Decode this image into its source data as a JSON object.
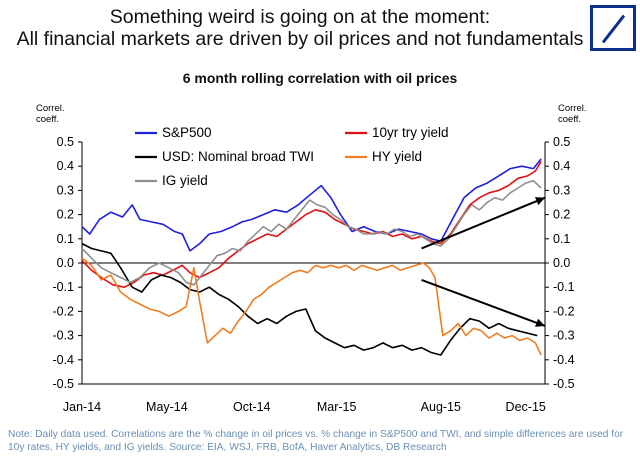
{
  "header": {
    "line1": "Something weird is going on at the moment:",
    "line2": "All financial markets are driven by oil prices and not fundamentals"
  },
  "logo": {
    "icon": "deutsche-bank-logo-icon",
    "color": "#0a2f8c"
  },
  "note": "Note: Daily data used. Correlations are the % change in oil prices vs. % change in S&P500 and TWI, and simple differences are used for 10y rates, HY yields, and IG yields. Source: EIA, WSJ, FRB, BofA, Haver Analytics, DB Research",
  "chart_data": {
    "type": "line",
    "title": "6 month rolling correlation with oil prices",
    "ylabel_left": "Correl. coeff.",
    "ylabel_right": "Correl. coeff.",
    "ylim": [
      -0.5,
      0.5
    ],
    "yticks": [
      0.5,
      0.4,
      0.3,
      0.2,
      0.1,
      0.0,
      -0.1,
      -0.2,
      -0.3,
      -0.4,
      -0.5
    ],
    "ytick_labels": [
      "0.5",
      "0.4",
      "0.3",
      "0.2",
      "0.1",
      "0.0",
      "-0.1",
      "-0.2",
      "-0.3",
      "-0.4",
      "-0.5"
    ],
    "xlim": [
      0,
      24
    ],
    "xticks": [
      {
        "t": 0,
        "label": "Jan-14"
      },
      {
        "t": 4.4,
        "label": "May-14"
      },
      {
        "t": 8.8,
        "label": "Oct-14"
      },
      {
        "t": 13.2,
        "label": "Mar-15"
      },
      {
        "t": 18.6,
        "label": "Aug-15"
      },
      {
        "t": 23,
        "label": "Dec-15"
      }
    ],
    "series": [
      {
        "name": "S&P500",
        "color": "#1f1fe0",
        "points": [
          [
            0,
            0.15
          ],
          [
            0.4,
            0.12
          ],
          [
            0.9,
            0.18
          ],
          [
            1.5,
            0.21
          ],
          [
            2.1,
            0.19
          ],
          [
            2.6,
            0.24
          ],
          [
            3.0,
            0.18
          ],
          [
            3.6,
            0.17
          ],
          [
            4.2,
            0.16
          ],
          [
            4.8,
            0.13
          ],
          [
            5.2,
            0.12
          ],
          [
            5.6,
            0.05
          ],
          [
            6.1,
            0.08
          ],
          [
            6.6,
            0.12
          ],
          [
            7.2,
            0.13
          ],
          [
            7.8,
            0.15
          ],
          [
            8.3,
            0.17
          ],
          [
            8.8,
            0.18
          ],
          [
            9.4,
            0.2
          ],
          [
            10.0,
            0.22
          ],
          [
            10.6,
            0.21
          ],
          [
            11.2,
            0.24
          ],
          [
            11.8,
            0.28
          ],
          [
            12.4,
            0.32
          ],
          [
            12.9,
            0.27
          ],
          [
            13.4,
            0.2
          ],
          [
            14.0,
            0.13
          ],
          [
            14.6,
            0.15
          ],
          [
            15.2,
            0.13
          ],
          [
            15.8,
            0.12
          ],
          [
            16.4,
            0.14
          ],
          [
            17.0,
            0.13
          ],
          [
            17.6,
            0.12
          ],
          [
            18.1,
            0.1
          ],
          [
            18.6,
            0.09
          ],
          [
            19.2,
            0.18
          ],
          [
            19.8,
            0.27
          ],
          [
            20.4,
            0.31
          ],
          [
            21.0,
            0.33
          ],
          [
            21.6,
            0.36
          ],
          [
            22.2,
            0.39
          ],
          [
            22.8,
            0.4
          ],
          [
            23.4,
            0.39
          ],
          [
            23.8,
            0.43
          ]
        ]
      },
      {
        "name": "10yr try yield",
        "color": "#e01010",
        "points": [
          [
            0,
            0.01
          ],
          [
            0.5,
            -0.03
          ],
          [
            1.0,
            -0.06
          ],
          [
            1.6,
            -0.09
          ],
          [
            2.2,
            -0.1
          ],
          [
            2.7,
            -0.08
          ],
          [
            3.2,
            -0.05
          ],
          [
            3.7,
            -0.04
          ],
          [
            4.2,
            -0.05
          ],
          [
            4.7,
            -0.03
          ],
          [
            5.2,
            -0.01
          ],
          [
            5.6,
            -0.04
          ],
          [
            6.1,
            -0.06
          ],
          [
            6.6,
            -0.04
          ],
          [
            7.1,
            -0.02
          ],
          [
            7.6,
            0.02
          ],
          [
            8.1,
            0.05
          ],
          [
            8.6,
            0.08
          ],
          [
            9.1,
            0.1
          ],
          [
            9.6,
            0.12
          ],
          [
            10.1,
            0.11
          ],
          [
            10.6,
            0.14
          ],
          [
            11.1,
            0.17
          ],
          [
            11.6,
            0.2
          ],
          [
            12.1,
            0.22
          ],
          [
            12.6,
            0.21
          ],
          [
            13.1,
            0.18
          ],
          [
            13.6,
            0.16
          ],
          [
            14.1,
            0.14
          ],
          [
            14.6,
            0.13
          ],
          [
            15.1,
            0.12
          ],
          [
            15.6,
            0.13
          ],
          [
            16.1,
            0.11
          ],
          [
            16.6,
            0.12
          ],
          [
            17.1,
            0.1
          ],
          [
            17.6,
            0.11
          ],
          [
            18.1,
            0.09
          ],
          [
            18.6,
            0.08
          ],
          [
            19.1,
            0.12
          ],
          [
            19.6,
            0.18
          ],
          [
            20.1,
            0.24
          ],
          [
            20.6,
            0.27
          ],
          [
            21.1,
            0.29
          ],
          [
            21.6,
            0.3
          ],
          [
            22.1,
            0.32
          ],
          [
            22.6,
            0.35
          ],
          [
            23.1,
            0.36
          ],
          [
            23.5,
            0.38
          ],
          [
            23.8,
            0.42
          ]
        ]
      },
      {
        "name": "USD: Nominal broad TWI",
        "color": "#000000",
        "points": [
          [
            0,
            0.08
          ],
          [
            0.5,
            0.06
          ],
          [
            1.0,
            0.05
          ],
          [
            1.5,
            0.04
          ],
          [
            2.0,
            -0.02
          ],
          [
            2.6,
            -0.1
          ],
          [
            3.1,
            -0.12
          ],
          [
            3.6,
            -0.07
          ],
          [
            4.1,
            -0.05
          ],
          [
            4.6,
            -0.06
          ],
          [
            5.1,
            -0.08
          ],
          [
            5.6,
            -0.11
          ],
          [
            6.1,
            -0.12
          ],
          [
            6.6,
            -0.1
          ],
          [
            7.1,
            -0.13
          ],
          [
            7.6,
            -0.15
          ],
          [
            8.1,
            -0.18
          ],
          [
            8.6,
            -0.22
          ],
          [
            9.1,
            -0.25
          ],
          [
            9.6,
            -0.23
          ],
          [
            10.1,
            -0.25
          ],
          [
            10.6,
            -0.22
          ],
          [
            11.1,
            -0.2
          ],
          [
            11.6,
            -0.19
          ],
          [
            12.1,
            -0.28
          ],
          [
            12.6,
            -0.31
          ],
          [
            13.1,
            -0.33
          ],
          [
            13.6,
            -0.35
          ],
          [
            14.1,
            -0.34
          ],
          [
            14.6,
            -0.36
          ],
          [
            15.1,
            -0.35
          ],
          [
            15.6,
            -0.33
          ],
          [
            16.1,
            -0.35
          ],
          [
            16.6,
            -0.34
          ],
          [
            17.1,
            -0.36
          ],
          [
            17.6,
            -0.35
          ],
          [
            18.1,
            -0.37
          ],
          [
            18.6,
            -0.38
          ],
          [
            19.1,
            -0.32
          ],
          [
            19.6,
            -0.27
          ],
          [
            20.1,
            -0.23
          ],
          [
            20.6,
            -0.24
          ],
          [
            21.1,
            -0.27
          ],
          [
            21.6,
            -0.25
          ],
          [
            22.1,
            -0.27
          ],
          [
            22.6,
            -0.28
          ],
          [
            23.1,
            -0.29
          ],
          [
            23.6,
            -0.3
          ]
        ]
      },
      {
        "name": "HY yield",
        "color": "#ef7d22",
        "points": [
          [
            0,
            0.02
          ],
          [
            0.5,
            -0.01
          ],
          [
            1.0,
            -0.07
          ],
          [
            1.5,
            -0.05
          ],
          [
            2.0,
            -0.12
          ],
          [
            2.5,
            -0.15
          ],
          [
            3.0,
            -0.17
          ],
          [
            3.5,
            -0.19
          ],
          [
            4.0,
            -0.2
          ],
          [
            4.5,
            -0.22
          ],
          [
            5.0,
            -0.2
          ],
          [
            5.4,
            -0.18
          ],
          [
            5.8,
            -0.02
          ],
          [
            6.1,
            -0.16
          ],
          [
            6.5,
            -0.33
          ],
          [
            6.9,
            -0.3
          ],
          [
            7.3,
            -0.27
          ],
          [
            7.7,
            -0.29
          ],
          [
            8.1,
            -0.24
          ],
          [
            8.5,
            -0.2
          ],
          [
            8.9,
            -0.15
          ],
          [
            9.3,
            -0.13
          ],
          [
            9.7,
            -0.1
          ],
          [
            10.1,
            -0.08
          ],
          [
            10.5,
            -0.06
          ],
          [
            10.9,
            -0.04
          ],
          [
            11.3,
            -0.03
          ],
          [
            11.7,
            -0.04
          ],
          [
            12.1,
            -0.01
          ],
          [
            12.5,
            -0.02
          ],
          [
            12.9,
            -0.01
          ],
          [
            13.3,
            -0.02
          ],
          [
            13.7,
            -0.01
          ],
          [
            14.1,
            -0.03
          ],
          [
            14.5,
            -0.01
          ],
          [
            14.9,
            -0.02
          ],
          [
            15.3,
            -0.03
          ],
          [
            15.7,
            -0.02
          ],
          [
            16.1,
            -0.01
          ],
          [
            16.5,
            -0.03
          ],
          [
            16.9,
            -0.02
          ],
          [
            17.3,
            -0.01
          ],
          [
            17.7,
            0.0
          ],
          [
            18.0,
            -0.02
          ],
          [
            18.3,
            -0.06
          ],
          [
            18.7,
            -0.3
          ],
          [
            19.1,
            -0.28
          ],
          [
            19.5,
            -0.25
          ],
          [
            19.9,
            -0.3
          ],
          [
            20.3,
            -0.27
          ],
          [
            20.7,
            -0.28
          ],
          [
            21.1,
            -0.31
          ],
          [
            21.5,
            -0.29
          ],
          [
            21.9,
            -0.31
          ],
          [
            22.3,
            -0.3
          ],
          [
            22.7,
            -0.32
          ],
          [
            23.1,
            -0.31
          ],
          [
            23.5,
            -0.33
          ],
          [
            23.8,
            -0.38
          ]
        ]
      },
      {
        "name": "IG yield",
        "color": "#8f8f8f",
        "points": [
          [
            0,
            0.06
          ],
          [
            0.5,
            0.02
          ],
          [
            1.0,
            -0.02
          ],
          [
            1.5,
            -0.04
          ],
          [
            2.0,
            -0.06
          ],
          [
            2.5,
            -0.08
          ],
          [
            3.0,
            -0.06
          ],
          [
            3.5,
            -0.02
          ],
          [
            4.0,
            0.0
          ],
          [
            4.5,
            -0.02
          ],
          [
            5.0,
            -0.04
          ],
          [
            5.4,
            -0.08
          ],
          [
            5.8,
            -0.09
          ],
          [
            6.2,
            -0.05
          ],
          [
            6.6,
            -0.01
          ],
          [
            7.0,
            0.03
          ],
          [
            7.4,
            0.04
          ],
          [
            7.8,
            0.06
          ],
          [
            8.2,
            0.05
          ],
          [
            8.6,
            0.09
          ],
          [
            9.0,
            0.12
          ],
          [
            9.4,
            0.15
          ],
          [
            9.8,
            0.13
          ],
          [
            10.2,
            0.16
          ],
          [
            10.6,
            0.14
          ],
          [
            11.0,
            0.18
          ],
          [
            11.4,
            0.22
          ],
          [
            11.8,
            0.26
          ],
          [
            12.2,
            0.24
          ],
          [
            12.6,
            0.23
          ],
          [
            13.0,
            0.2
          ],
          [
            13.4,
            0.18
          ],
          [
            13.8,
            0.15
          ],
          [
            14.2,
            0.14
          ],
          [
            14.6,
            0.12
          ],
          [
            15.0,
            0.12
          ],
          [
            15.4,
            0.13
          ],
          [
            15.8,
            0.12
          ],
          [
            16.2,
            0.14
          ],
          [
            16.6,
            0.13
          ],
          [
            17.0,
            0.11
          ],
          [
            17.4,
            0.12
          ],
          [
            17.8,
            0.1
          ],
          [
            18.2,
            0.08
          ],
          [
            18.6,
            0.07
          ],
          [
            19.0,
            0.1
          ],
          [
            19.4,
            0.15
          ],
          [
            19.8,
            0.2
          ],
          [
            20.2,
            0.24
          ],
          [
            20.6,
            0.22
          ],
          [
            21.0,
            0.25
          ],
          [
            21.4,
            0.27
          ],
          [
            21.8,
            0.26
          ],
          [
            22.2,
            0.29
          ],
          [
            22.6,
            0.31
          ],
          [
            23.0,
            0.33
          ],
          [
            23.4,
            0.34
          ],
          [
            23.8,
            0.31
          ]
        ]
      }
    ],
    "annotations": [
      {
        "type": "arrow",
        "direction": "up",
        "from": [
          17.6,
          0.06
        ],
        "to": [
          24.0,
          0.27
        ]
      },
      {
        "type": "arrow",
        "direction": "down",
        "from": [
          17.6,
          -0.07
        ],
        "to": [
          24.0,
          -0.26
        ]
      }
    ]
  }
}
